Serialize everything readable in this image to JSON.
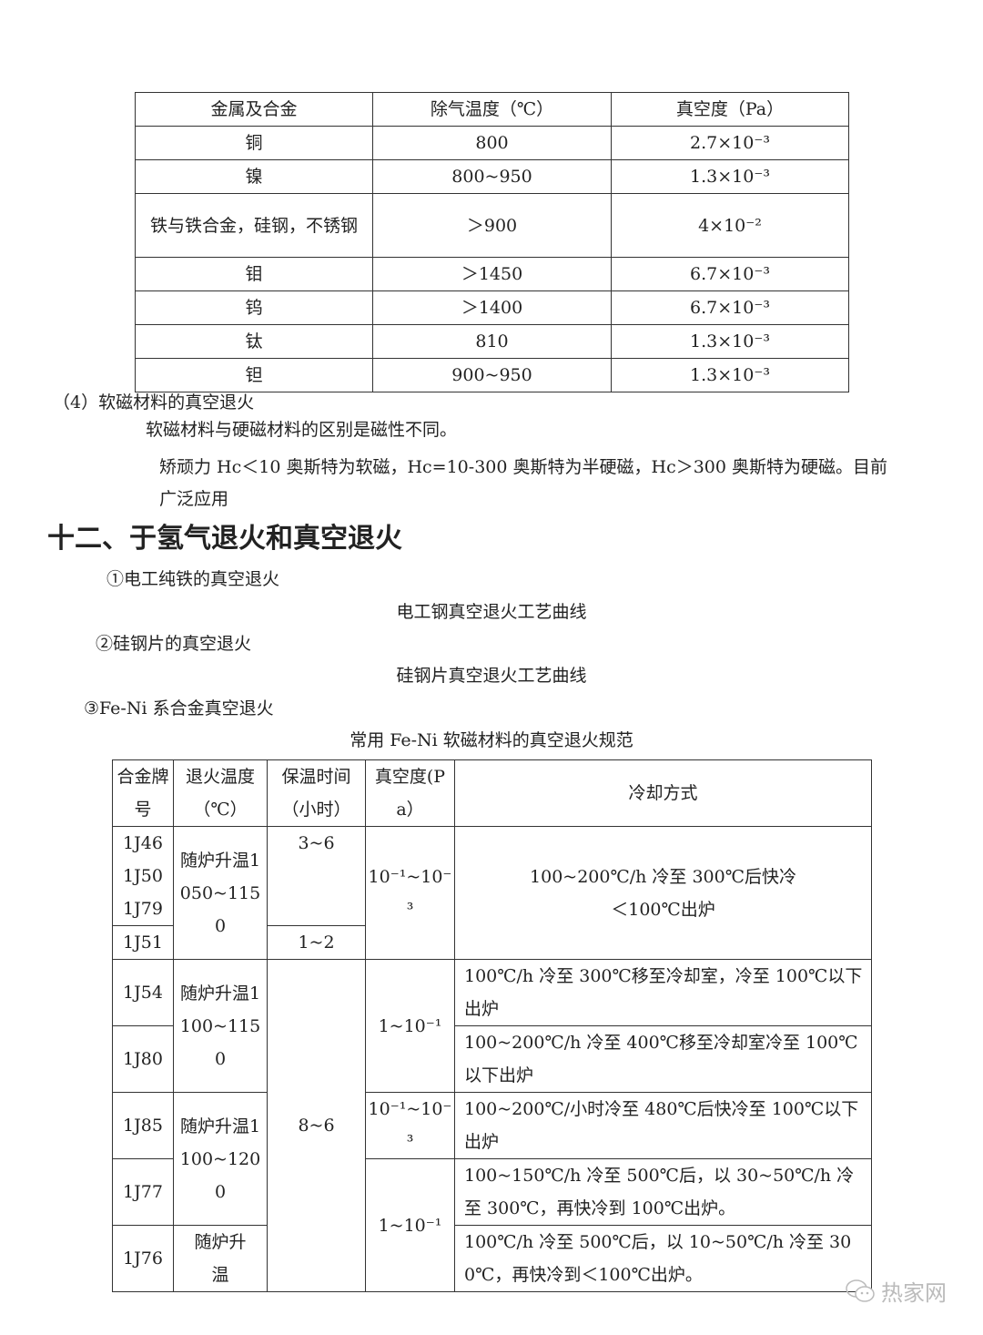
{
  "table1": {
    "headers": [
      "金属及合金",
      "除气温度（℃）",
      "真空度（Pa）"
    ],
    "rows": [
      [
        "铜",
        "800",
        "2.7×10⁻³"
      ],
      [
        "镍",
        "800~950",
        "1.3×10⁻³"
      ],
      [
        "铁与铁合金，硅钢，不锈钢",
        "＞900",
        "4×10⁻²"
      ],
      [
        "钼",
        "＞1450",
        "6.7×10⁻³"
      ],
      [
        "钨",
        "＞1400",
        "6.7×10⁻³"
      ],
      [
        "钛",
        "810",
        "1.3×10⁻³"
      ],
      [
        "钽",
        "900~950",
        "1.3×10⁻³"
      ]
    ]
  },
  "section4": {
    "title": "（4）软磁材料的真空退火",
    "para1": "软磁材料与硬磁材料的区别是磁性不同。",
    "para2_line1": "矫顽力 Hc＜10 奥斯特为软磁，Hc=10-300 奥斯特为半硬磁，Hc＞300 奥斯特为硬磁。目前",
    "para2_line2": "广泛应用"
  },
  "heading": "十二、于氢气退火和真空退火",
  "items": {
    "item1": "①电工纯铁的真空退火",
    "caption1": "电工钢真空退火工艺曲线",
    "item2": "②硅钢片的真空退火",
    "caption2": "硅钢片真空退火工艺曲线",
    "item3": "③Fe-Ni 系合金真空退火",
    "caption3": "常用 Fe-Ni 软磁材料的真空退火规范"
  },
  "table2": {
    "headers": [
      "合金牌号",
      "退火温度（℃）",
      "保温时间（小时）",
      "真空度(Pa）",
      "冷却方式"
    ],
    "alloys": [
      "1J46\n1J50\n1J79",
      "1J51",
      "1J54",
      "1J80",
      "1J85",
      "1J77",
      "1J76"
    ],
    "temps": [
      "随炉升温1050~1150",
      "随炉升温1100~1150",
      "随炉升温1100~1200",
      "随炉升温"
    ],
    "holds": [
      "3~6",
      "1~2",
      "8~6"
    ],
    "vacuums": [
      "10⁻¹~10⁻³",
      "1~10⁻¹",
      "10⁻¹~10⁻³",
      "1~10⁻¹"
    ],
    "cooling": [
      "100~200℃/h 冷至 300℃后快冷\n＜100℃出炉",
      "100℃/h 冷至 300℃移至冷却室，冷至 100℃以下出炉",
      "100~200℃/h 冷至 400℃移至冷却室冷至 100℃以下出炉",
      "100~200℃/小时冷至 480℃后快冷至 100℃以下出炉",
      "100~150℃/h 冷至 500℃后，以 30~50℃/h 冷至 300℃，再快冷到 100℃出炉。",
      "100℃/h 冷至 500℃后，以 10~50℃/h 冷至 300℃，再快冷到＜100℃出炉。"
    ]
  },
  "watermark": {
    "text": "热家网",
    "icon": "wechat-icon"
  }
}
